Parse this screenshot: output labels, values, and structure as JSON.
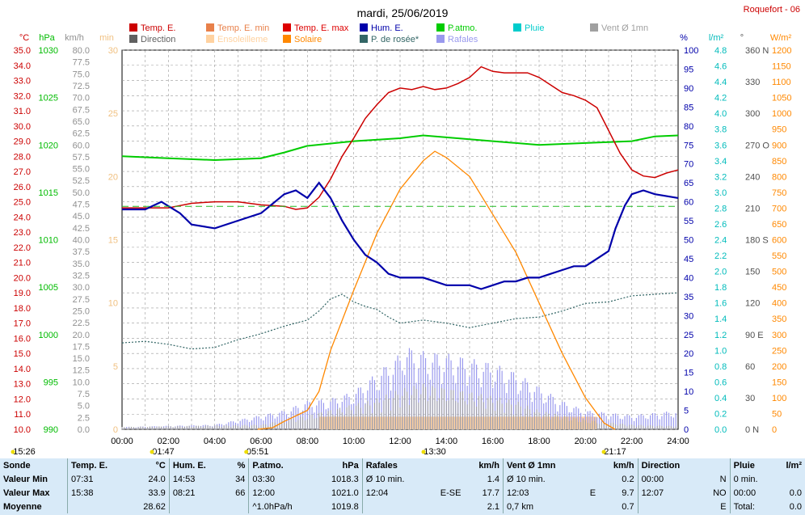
{
  "header": {
    "title": "mardi, 25/06/2019",
    "station": "Roquefort - 06"
  },
  "legend": [
    {
      "label": "Temp. E.",
      "color": "#cc0000"
    },
    {
      "label": "Temp. E. min",
      "color": "#e8804a"
    },
    {
      "label": "Temp. E. max",
      "color": "#dd0000"
    },
    {
      "label": "Hum. E.",
      "color": "#0000aa"
    },
    {
      "label": "P.atmo.",
      "color": "#00cc00"
    },
    {
      "label": "Pluie",
      "color": "#00cccc"
    },
    {
      "label": "Vent Ø 1mn",
      "color": "#a0a0a0"
    },
    {
      "label": "Direction",
      "color": "#606060"
    },
    {
      "label": "Ensoleilleme",
      "color": "#ffd2a0"
    },
    {
      "label": "Solaire",
      "color": "#ff8800"
    },
    {
      "label": "P. de rosée*",
      "color": "#336666"
    },
    {
      "label": "Rafales",
      "color": "#9999ee"
    }
  ],
  "axes": {
    "temp_unit": "°C",
    "press_unit": "hPa",
    "wind_unit": "km/h",
    "sun_unit": "min",
    "hum_unit": "%",
    "rain_unit": "l/m²",
    "dir_unit": "°",
    "solar_unit": "W/m²",
    "temp_ticks": [
      "35.0",
      "34.0",
      "33.0",
      "32.0",
      "31.0",
      "30.0",
      "29.0",
      "28.0",
      "27.0",
      "26.0",
      "25.0",
      "24.0",
      "23.0",
      "22.0",
      "21.0",
      "20.0",
      "19.0",
      "18.0",
      "17.0",
      "16.0",
      "15.0",
      "14.0",
      "13.0",
      "12.0",
      "11.0",
      "10.0"
    ],
    "press_ticks": [
      "1030",
      "1025",
      "1020",
      "1015",
      "1010",
      "1005",
      "1000",
      "995",
      "990"
    ],
    "wind_ticks": [
      "80.0",
      "77.5",
      "75.0",
      "72.5",
      "70.0",
      "67.5",
      "65.0",
      "62.5",
      "60.0",
      "57.5",
      "55.0",
      "52.5",
      "50.0",
      "47.5",
      "45.0",
      "42.5",
      "40.0",
      "37.5",
      "35.0",
      "32.5",
      "30.0",
      "27.5",
      "25.0",
      "22.5",
      "20.0",
      "17.5",
      "15.0",
      "12.5",
      "10.0",
      "7.5",
      "5.0",
      "2.5",
      "0.0"
    ],
    "sun_ticks": [
      "30",
      "25",
      "20",
      "15",
      "10",
      "5",
      "0"
    ],
    "hum_ticks": [
      "100",
      "95",
      "90",
      "85",
      "80",
      "75",
      "70",
      "65",
      "60",
      "55",
      "50",
      "45",
      "40",
      "35",
      "30",
      "25",
      "20",
      "15",
      "10",
      "5",
      "0"
    ],
    "rain_ticks": [
      "4.8",
      "4.6",
      "4.4",
      "4.2",
      "4.0",
      "3.8",
      "3.6",
      "3.4",
      "3.2",
      "3.0",
      "2.8",
      "2.6",
      "2.4",
      "2.2",
      "2.0",
      "1.8",
      "1.6",
      "1.4",
      "1.2",
      "1.0",
      "0.8",
      "0.6",
      "0.4",
      "0.2",
      "0.0"
    ],
    "dir_ticks": [
      {
        "v": 360,
        "t": "360 N"
      },
      {
        "v": 330,
        "t": "330"
      },
      {
        "v": 300,
        "t": "300"
      },
      {
        "v": 270,
        "t": "270 O"
      },
      {
        "v": 240,
        "t": "240"
      },
      {
        "v": 210,
        "t": "210"
      },
      {
        "v": 180,
        "t": "180 S"
      },
      {
        "v": 150,
        "t": "150"
      },
      {
        "v": 120,
        "t": "120"
      },
      {
        "v": 90,
        "t": "90 E"
      },
      {
        "v": 60,
        "t": "60"
      },
      {
        "v": 30,
        "t": "30"
      },
      {
        "v": 0,
        "t": "0 N"
      }
    ],
    "solar_ticks": [
      "1200",
      "1150",
      "1100",
      "1050",
      "1000",
      "950",
      "900",
      "850",
      "800",
      "750",
      "700",
      "650",
      "600",
      "550",
      "500",
      "450",
      "400",
      "350",
      "300",
      "250",
      "200",
      "150",
      "100",
      "50",
      "0"
    ],
    "x_ticks": [
      "00:00",
      "02:00",
      "04:00",
      "06:00",
      "08:00",
      "10:00",
      "12:00",
      "14:00",
      "16:00",
      "18:00",
      "20:00",
      "22:00",
      "24:00"
    ]
  },
  "time_markers": [
    {
      "label": "15:26",
      "h": -4.5
    },
    {
      "label": "01:47",
      "h": 1.78
    },
    {
      "label": "05:51",
      "h": 5.85
    },
    {
      "label": "13:30",
      "h": 13.5
    },
    {
      "label": "21:17",
      "h": 21.28
    }
  ],
  "chart_data": {
    "type": "line",
    "title": "mardi, 25/06/2019",
    "x_unit": "hour",
    "xlim": [
      0,
      24
    ],
    "series": [
      {
        "name": "Temp. E.",
        "unit": "°C",
        "color": "#cc0000",
        "points": [
          [
            0,
            24.6
          ],
          [
            1,
            24.6
          ],
          [
            2,
            24.6
          ],
          [
            3,
            24.9
          ],
          [
            4,
            25.0
          ],
          [
            5,
            25.0
          ],
          [
            6,
            24.8
          ],
          [
            7,
            24.7
          ],
          [
            7.5,
            24.5
          ],
          [
            8,
            24.6
          ],
          [
            8.5,
            25.3
          ],
          [
            9,
            26.5
          ],
          [
            9.5,
            28.0
          ],
          [
            10,
            29.2
          ],
          [
            10.5,
            30.5
          ],
          [
            11,
            31.4
          ],
          [
            11.5,
            32.2
          ],
          [
            12,
            32.5
          ],
          [
            12.5,
            32.4
          ],
          [
            13,
            32.6
          ],
          [
            13.5,
            32.4
          ],
          [
            14,
            32.5
          ],
          [
            14.5,
            32.8
          ],
          [
            15,
            33.2
          ],
          [
            15.5,
            33.9
          ],
          [
            16,
            33.6
          ],
          [
            16.5,
            33.5
          ],
          [
            17,
            33.5
          ],
          [
            17.5,
            33.5
          ],
          [
            18,
            33.2
          ],
          [
            18.5,
            32.7
          ],
          [
            19,
            32.2
          ],
          [
            19.5,
            32.0
          ],
          [
            20,
            31.7
          ],
          [
            20.5,
            31.2
          ],
          [
            21,
            29.7
          ],
          [
            21.5,
            28.2
          ],
          [
            22,
            27.1
          ],
          [
            22.5,
            26.7
          ],
          [
            23,
            26.6
          ],
          [
            23.5,
            26.9
          ],
          [
            24,
            27.1
          ]
        ]
      },
      {
        "name": "Hum. E.",
        "unit": "%",
        "color": "#0000aa",
        "points": [
          [
            0,
            58
          ],
          [
            1,
            58
          ],
          [
            1.7,
            60
          ],
          [
            2.5,
            57
          ],
          [
            3,
            54
          ],
          [
            4,
            53
          ],
          [
            5,
            55
          ],
          [
            6,
            57
          ],
          [
            7,
            62
          ],
          [
            7.5,
            63
          ],
          [
            8,
            61
          ],
          [
            8.5,
            65
          ],
          [
            9,
            61
          ],
          [
            9.5,
            55
          ],
          [
            10,
            50
          ],
          [
            10.5,
            46
          ],
          [
            11,
            44
          ],
          [
            11.5,
            41
          ],
          [
            12,
            40
          ],
          [
            12.5,
            40
          ],
          [
            13,
            40
          ],
          [
            13.5,
            39
          ],
          [
            14,
            38
          ],
          [
            14.5,
            38
          ],
          [
            15,
            38
          ],
          [
            15.5,
            37
          ],
          [
            16,
            38
          ],
          [
            16.5,
            39
          ],
          [
            17,
            39
          ],
          [
            17.5,
            40
          ],
          [
            18,
            40
          ],
          [
            18.5,
            41
          ],
          [
            19,
            42
          ],
          [
            19.5,
            43
          ],
          [
            20,
            43
          ],
          [
            20.5,
            45
          ],
          [
            21,
            47
          ],
          [
            21.3,
            53
          ],
          [
            21.7,
            59
          ],
          [
            22,
            62
          ],
          [
            22.5,
            63
          ],
          [
            23,
            62
          ],
          [
            24,
            61
          ]
        ]
      },
      {
        "name": "P.atmo.",
        "unit": "hPa",
        "color": "#00cc00",
        "points": [
          [
            0,
            1018.8
          ],
          [
            2,
            1018.6
          ],
          [
            4,
            1018.4
          ],
          [
            6,
            1018.6
          ],
          [
            7,
            1019.2
          ],
          [
            8,
            1019.9
          ],
          [
            10,
            1020.4
          ],
          [
            12,
            1020.7
          ],
          [
            13,
            1021.0
          ],
          [
            14,
            1020.8
          ],
          [
            16,
            1020.4
          ],
          [
            18,
            1020.0
          ],
          [
            20,
            1020.2
          ],
          [
            22,
            1020.4
          ],
          [
            23,
            1020.9
          ],
          [
            24,
            1021.0
          ]
        ]
      },
      {
        "name": "P. de rosée*",
        "unit": "°C",
        "color": "#336666",
        "points": [
          [
            0,
            15.7
          ],
          [
            1,
            15.8
          ],
          [
            2,
            15.6
          ],
          [
            3,
            15.3
          ],
          [
            4,
            15.4
          ],
          [
            5,
            15.9
          ],
          [
            6,
            16.3
          ],
          [
            7,
            16.8
          ],
          [
            8,
            17.2
          ],
          [
            8.5,
            17.8
          ],
          [
            9,
            18.6
          ],
          [
            9.5,
            18.9
          ],
          [
            10,
            18.4
          ],
          [
            10.5,
            18.1
          ],
          [
            11,
            17.9
          ],
          [
            11.5,
            17.4
          ],
          [
            12,
            17.0
          ],
          [
            12.5,
            17.1
          ],
          [
            13,
            17.2
          ],
          [
            14,
            17.0
          ],
          [
            15,
            16.7
          ],
          [
            16,
            17.0
          ],
          [
            17,
            17.3
          ],
          [
            18,
            17.4
          ],
          [
            19,
            17.8
          ],
          [
            20,
            18.3
          ],
          [
            21,
            18.4
          ],
          [
            22,
            18.8
          ],
          [
            23,
            18.9
          ],
          [
            24,
            19.0
          ]
        ]
      },
      {
        "name": "Solaire",
        "unit": "W/m²",
        "color": "#ff8800",
        "points": [
          [
            5.85,
            0
          ],
          [
            6.5,
            5
          ],
          [
            7,
            25
          ],
          [
            8,
            60
          ],
          [
            8.5,
            120
          ],
          [
            9,
            250
          ],
          [
            10,
            440
          ],
          [
            11,
            620
          ],
          [
            12,
            760
          ],
          [
            13,
            850
          ],
          [
            13.5,
            880
          ],
          [
            14,
            860
          ],
          [
            15,
            800
          ],
          [
            16,
            680
          ],
          [
            17,
            560
          ],
          [
            18,
            400
          ],
          [
            19,
            240
          ],
          [
            20,
            100
          ],
          [
            20.8,
            20
          ],
          [
            21.28,
            0
          ]
        ]
      },
      {
        "name": "Vent Ø 1mn",
        "unit": "km/h",
        "color": "#a0a0a0",
        "points": [
          [
            0,
            0.5
          ],
          [
            6,
            1.0
          ],
          [
            8,
            3.0
          ],
          [
            11,
            6.5
          ],
          [
            12,
            8.5
          ],
          [
            13,
            9.7
          ],
          [
            14,
            8.8
          ],
          [
            15,
            8.0
          ],
          [
            16,
            7.0
          ],
          [
            17,
            6.0
          ],
          [
            18,
            4.0
          ],
          [
            20,
            2.0
          ],
          [
            22,
            1.0
          ],
          [
            24,
            0.7
          ]
        ]
      },
      {
        "name": "Rafales",
        "unit": "km/h",
        "color": "#9999ee",
        "points": [
          [
            0,
            0.5
          ],
          [
            4,
            1.0
          ],
          [
            7,
            4.0
          ],
          [
            8,
            6.0
          ],
          [
            9,
            6.5
          ],
          [
            10,
            8.0
          ],
          [
            11,
            12.0
          ],
          [
            12,
            16.0
          ],
          [
            12.1,
            17.7
          ],
          [
            13,
            16.5
          ],
          [
            14,
            16.0
          ],
          [
            15,
            15.0
          ],
          [
            16,
            14.0
          ],
          [
            17,
            12.0
          ],
          [
            18,
            9.0
          ],
          [
            19,
            6.0
          ],
          [
            20,
            4.0
          ],
          [
            22,
            3.0
          ],
          [
            24,
            4.0
          ]
        ]
      },
      {
        "name": "Ensoleilleme",
        "unit": "min",
        "color": "#ffd2a0",
        "points": [
          [
            8.5,
            1
          ],
          [
            9,
            1
          ],
          [
            10,
            1
          ],
          [
            11,
            1
          ],
          [
            12,
            1
          ],
          [
            13,
            1
          ],
          [
            14,
            1
          ],
          [
            15,
            1
          ],
          [
            16,
            1
          ],
          [
            17,
            1
          ],
          [
            18,
            1
          ],
          [
            19,
            1
          ],
          [
            20,
            1
          ],
          [
            20.5,
            1
          ]
        ]
      }
    ]
  },
  "stats": {
    "headers": {
      "sonde": "Sonde",
      "temp": "Temp. E.",
      "temp_u": "°C",
      "hum": "Hum. E.",
      "hum_u": "%",
      "press": "P.atmo.",
      "press_u": "hPa",
      "gust": "Rafales",
      "gust_u": "km/h",
      "wind": "Vent Ø 1mn",
      "wind_u": "km/h",
      "dir": "Direction",
      "rain": "Pluie",
      "rain_u": "l/m²"
    },
    "min": {
      "label": "Valeur Min",
      "temp_t": "07:31",
      "temp_v": "24.0",
      "hum_t": "14:53",
      "hum_v": "34",
      "press_t": "03:30",
      "press_v": "1018.3",
      "gust_t": "Ø 10 min.",
      "gust_v": "1.4",
      "wind_t": "Ø 10 min.",
      "wind_v": "0.2",
      "dir_t": "00:00",
      "dir_v": "N",
      "rain_t": "0 min.",
      "rain_v": ""
    },
    "max": {
      "label": "Valeur Max",
      "temp_t": "15:38",
      "temp_v": "33.9",
      "hum_t": "08:21",
      "hum_v": "66",
      "press_t": "12:00",
      "press_v": "1021.0",
      "gust_t": "12:04",
      "gust_d": "E-SE",
      "gust_v": "17.7",
      "wind_t": "12:03",
      "wind_d": "E",
      "wind_v": "9.7",
      "dir_t": "12:07",
      "dir_v": "NO",
      "rain_t": "00:00",
      "rain_v": "0.0"
    },
    "avg": {
      "label": "Moyenne",
      "temp_v": "28.62",
      "press_t": "^1.0hPa/h",
      "press_v": "1019.8",
      "gust_v": "2.1",
      "wind_t": "0,7 km",
      "wind_v": "0.7",
      "dir_v": "E",
      "rain_t": "Total:",
      "rain_v": "0.0"
    }
  }
}
